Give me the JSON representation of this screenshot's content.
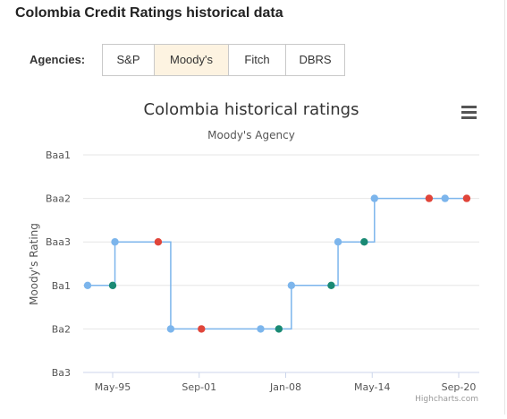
{
  "page": {
    "title": "Colombia Credit Ratings historical data",
    "agency_label": "Agencies:"
  },
  "tabs": [
    {
      "label": "S&P",
      "active": false
    },
    {
      "label": "Moody's",
      "active": true
    },
    {
      "label": "Fitch",
      "active": false
    },
    {
      "label": "DBRS",
      "active": false
    }
  ],
  "menu_icon": "hamburger-menu-icon",
  "credits": "Highcharts.com",
  "colors": {
    "line": "#7cb5ec",
    "marker_default": "#7cb5ec",
    "marker_upgrade": "#1a8a74",
    "marker_downgrade": "#e0453a",
    "active_tab": "#fdf3e1",
    "grid": "#e6e6e6"
  },
  "chart_data": {
    "type": "line",
    "step": true,
    "title": "Colombia historical ratings",
    "subtitle": "Moody's Agency",
    "ylabel": "Moody's Rating",
    "y_categories": [
      "Ba3",
      "Ba2",
      "Ba1",
      "Baa3",
      "Baa2",
      "Baa1"
    ],
    "x_ticks": [
      "May-95",
      "Sep-01",
      "Jan-08",
      "May-14",
      "Sep-20"
    ],
    "grid": true,
    "legend": "none",
    "points": [
      {
        "date": "1993-07",
        "rating": "Ba1",
        "marker": "default"
      },
      {
        "date": "1995-05",
        "rating": "Ba1",
        "marker": "upgrade"
      },
      {
        "date": "1995-07",
        "rating": "Baa3",
        "marker": "default"
      },
      {
        "date": "1998-09",
        "rating": "Baa3",
        "marker": "downgrade"
      },
      {
        "date": "1999-08",
        "rating": "Ba2",
        "marker": "default"
      },
      {
        "date": "2001-11",
        "rating": "Ba2",
        "marker": "downgrade"
      },
      {
        "date": "2006-03",
        "rating": "Ba2",
        "marker": "default"
      },
      {
        "date": "2007-07",
        "rating": "Ba2",
        "marker": "upgrade"
      },
      {
        "date": "2008-06",
        "rating": "Ba1",
        "marker": "default"
      },
      {
        "date": "2011-05",
        "rating": "Ba1",
        "marker": "upgrade"
      },
      {
        "date": "2011-11",
        "rating": "Baa3",
        "marker": "default"
      },
      {
        "date": "2013-10",
        "rating": "Baa3",
        "marker": "upgrade"
      },
      {
        "date": "2014-07",
        "rating": "Baa2",
        "marker": "default"
      },
      {
        "date": "2018-07",
        "rating": "Baa2",
        "marker": "downgrade"
      },
      {
        "date": "2019-09",
        "rating": "Baa2",
        "marker": "default"
      },
      {
        "date": "2021-04",
        "rating": "Baa2",
        "marker": "downgrade"
      }
    ]
  }
}
